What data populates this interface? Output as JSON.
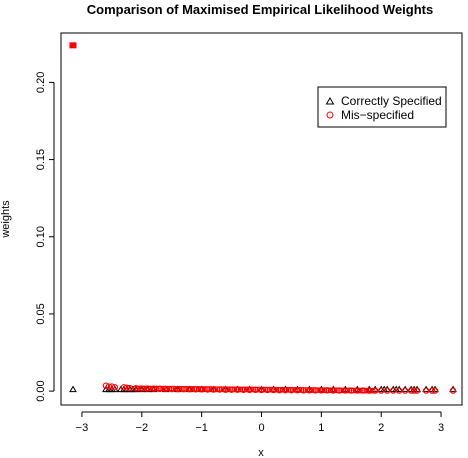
{
  "chart_data": {
    "type": "scatter",
    "title": "Comparison of Maximised Empirical Likelihood Weights",
    "xlabel": "x",
    "ylabel": "weights",
    "xlim": [
      -3.35,
      3.35
    ],
    "ylim": [
      -0.009,
      0.232
    ],
    "xticks": [
      -3,
      -2,
      -1,
      0,
      1,
      2,
      3
    ],
    "yticks": [
      0.0,
      0.05,
      0.1,
      0.15,
      0.2
    ],
    "ytick_labels": [
      "0.00",
      "0.05",
      "0.10",
      "0.15",
      "0.20"
    ],
    "grid": false,
    "legend": {
      "position": "top-right",
      "entries": [
        {
          "label": "Correctly Specified",
          "marker": "triangle",
          "color": "#000000"
        },
        {
          "label": "Mis−specified",
          "marker": "circle",
          "color": "#ff0000"
        }
      ]
    },
    "series": [
      {
        "name": "Correctly Specified",
        "marker": "triangle",
        "color": "#000000",
        "x": [
          -3.15,
          -2.6,
          -2.55,
          -2.5,
          -2.45,
          -2.35,
          -2.3,
          -2.25,
          -2.2,
          -2.15,
          -2.1,
          -2.0,
          -1.9,
          -1.8,
          -1.6,
          -1.4,
          -1.2,
          -1.0,
          -0.8,
          -0.6,
          -0.4,
          -0.2,
          0.0,
          0.2,
          0.4,
          0.6,
          0.8,
          1.0,
          1.2,
          1.4,
          1.6,
          1.8,
          1.9,
          2.0,
          2.05,
          2.1,
          2.2,
          2.25,
          2.3,
          2.4,
          2.5,
          2.55,
          2.6,
          2.75,
          2.85,
          2.9,
          3.2
        ],
        "y": [
          0.001,
          0.001,
          0.001,
          0.001,
          0.001,
          0.001,
          0.001,
          0.001,
          0.001,
          0.001,
          0.001,
          0.001,
          0.001,
          0.001,
          0.001,
          0.001,
          0.001,
          0.001,
          0.001,
          0.001,
          0.001,
          0.001,
          0.001,
          0.001,
          0.001,
          0.001,
          0.001,
          0.001,
          0.001,
          0.001,
          0.001,
          0.001,
          0.001,
          0.001,
          0.001,
          0.001,
          0.001,
          0.001,
          0.001,
          0.001,
          0.001,
          0.001,
          0.001,
          0.001,
          0.001,
          0.001,
          0.001
        ]
      },
      {
        "name": "Mis−specified",
        "marker": "circle",
        "color": "#ff0000",
        "x": [
          -3.15,
          -2.6,
          -2.55,
          -2.5,
          -2.45,
          -2.3,
          -2.25,
          -2.2,
          -2.1,
          -2.0,
          -1.9,
          -1.8,
          -1.7,
          -1.6,
          -1.5,
          -1.4,
          -1.3,
          -1.2,
          -1.1,
          -1.0,
          -0.9,
          -0.8,
          -0.7,
          -0.6,
          -0.5,
          -0.4,
          -0.3,
          -0.2,
          -0.1,
          0.0,
          0.1,
          0.2,
          0.3,
          0.4,
          0.5,
          0.6,
          0.7,
          0.8,
          0.9,
          1.0,
          1.1,
          1.2,
          1.3,
          1.4,
          1.5,
          1.6,
          1.7,
          1.8,
          1.9,
          2.0,
          2.1,
          2.2,
          2.3,
          2.4,
          2.5,
          2.55,
          2.6,
          2.75,
          2.85,
          2.9,
          3.2
        ],
        "y": [
          0.224,
          0.0035,
          0.003,
          0.003,
          0.0025,
          0.0025,
          0.0022,
          0.002,
          0.0018,
          0.0017,
          0.0016,
          0.0015,
          0.0014,
          0.0014,
          0.0013,
          0.0013,
          0.0012,
          0.0012,
          0.0011,
          0.0011,
          0.001,
          0.001,
          0.001,
          0.0009,
          0.0009,
          0.0009,
          0.0008,
          0.0008,
          0.0008,
          0.0007,
          0.0007,
          0.0007,
          0.0006,
          0.0006,
          0.0006,
          0.0006,
          0.0005,
          0.0005,
          0.0005,
          0.0005,
          0.0005,
          0.0004,
          0.0004,
          0.0004,
          0.0004,
          0.0004,
          0.0004,
          0.0003,
          0.0003,
          0.0003,
          0.0003,
          0.0003,
          0.0003,
          0.0003,
          0.0003,
          0.0003,
          0.0003,
          0.0003,
          0.0003,
          0.0003,
          0.0003
        ]
      }
    ]
  }
}
